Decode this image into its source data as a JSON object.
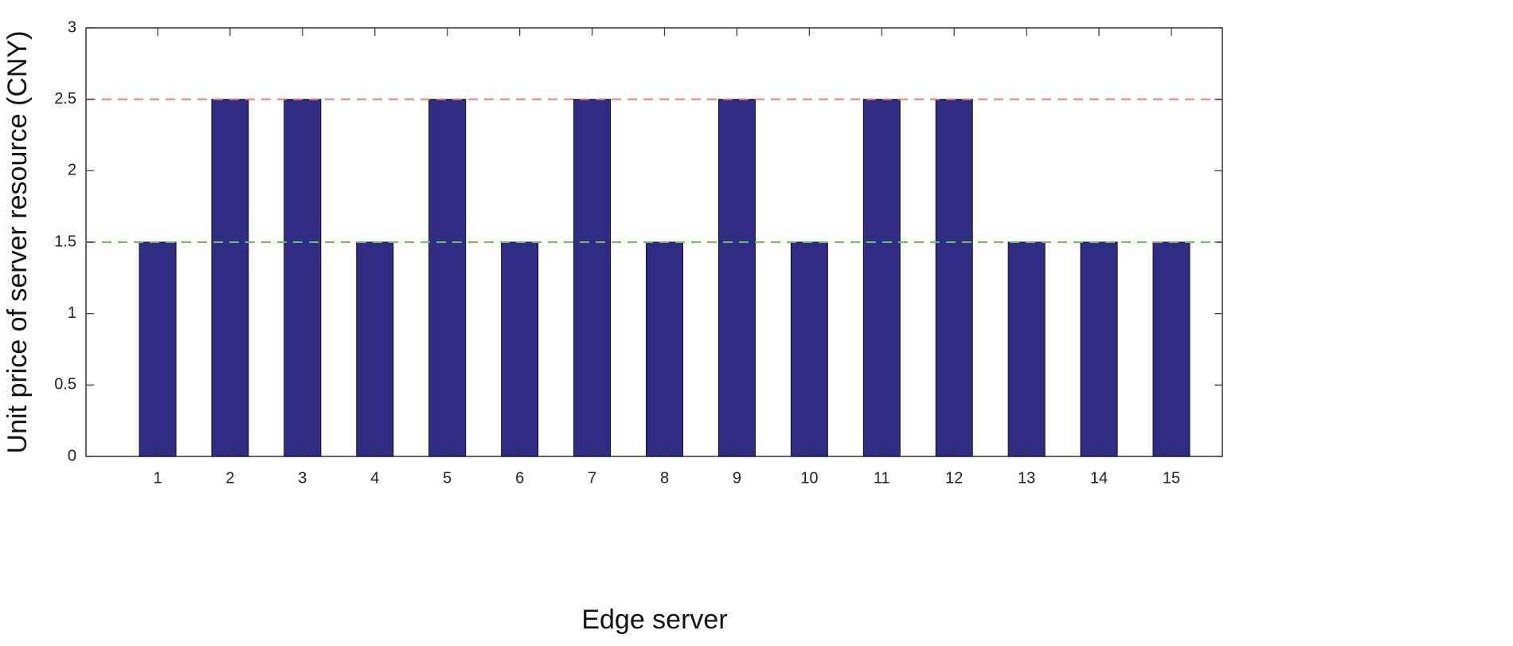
{
  "chart_data": {
    "type": "bar",
    "x_label": "Edge server",
    "y_label": "Unit price of server resource (CNY)",
    "categories": [
      "1",
      "2",
      "3",
      "4",
      "5",
      "6",
      "7",
      "8",
      "9",
      "10",
      "11",
      "12",
      "13",
      "14",
      "15"
    ],
    "values": [
      1.5,
      2.5,
      2.5,
      1.5,
      2.5,
      1.5,
      2.5,
      1.5,
      2.5,
      1.5,
      2.5,
      2.5,
      1.5,
      1.5,
      1.5
    ],
    "color": "#312c83",
    "ylim": [
      0,
      3
    ],
    "yticks": [
      0,
      0.5,
      1,
      1.5,
      2,
      2.5,
      3
    ],
    "reference_lines": [
      {
        "value": 2.5,
        "color": "#f07a7a"
      },
      {
        "value": 1.5,
        "color": "#6cc35a"
      }
    ],
    "grid": false
  }
}
